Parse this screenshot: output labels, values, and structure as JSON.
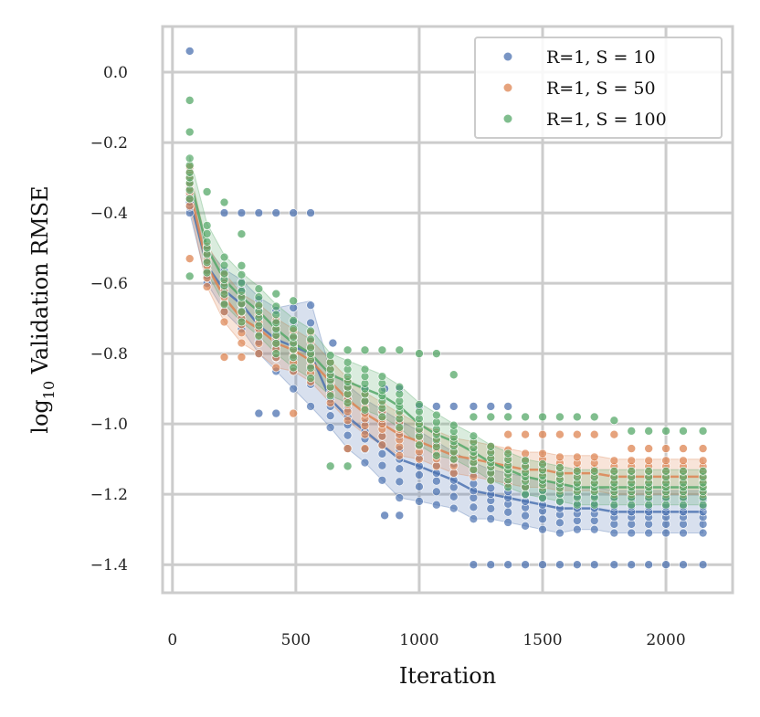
{
  "chart_data": {
    "type": "scatter",
    "title": "",
    "xlabel": "Iteration",
    "ylabel_base": "log",
    "ylabel_sub": "10",
    "ylabel_rest": " Validation RMSE",
    "xlim": [
      -40,
      2270
    ],
    "ylim": [
      -1.48,
      0.13
    ],
    "xticks": [
      0,
      500,
      1000,
      1500,
      2000
    ],
    "xtick_labels": [
      "0",
      "500",
      "1000",
      "1500",
      "2000"
    ],
    "yticks": [
      0.0,
      -0.2,
      -0.4,
      -0.6,
      -0.8,
      -1.0,
      -1.2,
      -1.4
    ],
    "ytick_labels": [
      "0.0",
      "−0.2",
      "−0.4",
      "−0.6",
      "−0.8",
      "−1.0",
      "−1.2",
      "−1.4"
    ],
    "grid": true,
    "legend_position": "top-right",
    "x": [
      70,
      140,
      210,
      280,
      350,
      420,
      490,
      560,
      640,
      710,
      780,
      850,
      920,
      1000,
      1070,
      1140,
      1220,
      1290,
      1360,
      1430,
      1500,
      1570,
      1640,
      1710,
      1790,
      1860,
      1930,
      2000,
      2070,
      2150
    ],
    "series": [
      {
        "name": "R=1, S = 10",
        "color": "#4c72b0",
        "mean": [
          -0.36,
          -0.55,
          -0.62,
          -0.66,
          -0.72,
          -0.76,
          -0.78,
          -0.8,
          -0.93,
          -0.98,
          -1.02,
          -1.06,
          -1.1,
          -1.12,
          -1.14,
          -1.16,
          -1.19,
          -1.2,
          -1.21,
          -1.22,
          -1.23,
          -1.24,
          -1.24,
          -1.24,
          -1.25,
          -1.25,
          -1.25,
          -1.25,
          -1.25,
          -1.25
        ],
        "band": [
          0.04,
          0.05,
          0.06,
          0.07,
          0.08,
          0.09,
          0.12,
          0.15,
          0.08,
          0.09,
          0.09,
          0.1,
          0.11,
          0.1,
          0.09,
          0.08,
          0.08,
          0.07,
          0.07,
          0.07,
          0.07,
          0.07,
          0.06,
          0.06,
          0.06,
          0.06,
          0.06,
          0.06,
          0.06,
          0.06
        ],
        "outliers": [
          [
            70,
            0.06
          ],
          [
            210,
            -0.4
          ],
          [
            280,
            -0.4
          ],
          [
            350,
            -0.4
          ],
          [
            420,
            -0.4
          ],
          [
            490,
            -0.4
          ],
          [
            560,
            -0.4
          ],
          [
            350,
            -0.97
          ],
          [
            420,
            -0.97
          ],
          [
            860,
            -1.26
          ],
          [
            920,
            -1.26
          ],
          [
            1220,
            -1.4
          ],
          [
            1290,
            -1.4
          ],
          [
            1360,
            -1.4
          ],
          [
            1430,
            -1.4
          ],
          [
            1500,
            -1.4
          ],
          [
            1570,
            -1.4
          ],
          [
            1640,
            -1.4
          ],
          [
            1710,
            -1.4
          ],
          [
            1790,
            -1.4
          ],
          [
            1860,
            -1.4
          ],
          [
            1930,
            -1.4
          ],
          [
            2000,
            -1.4
          ],
          [
            2070,
            -1.4
          ],
          [
            2150,
            -1.4
          ],
          [
            1000,
            -0.95
          ],
          [
            1070,
            -0.95
          ],
          [
            1140,
            -0.95
          ],
          [
            1220,
            -0.95
          ],
          [
            1290,
            -0.95
          ],
          [
            1360,
            -0.95
          ],
          [
            650,
            -0.77
          ],
          [
            780,
            -0.9
          ],
          [
            860,
            -0.9
          ],
          [
            920,
            -0.9
          ]
        ]
      },
      {
        "name": "R=1, S = 50",
        "color": "#dd8452",
        "mean": [
          -0.33,
          -0.55,
          -0.64,
          -0.7,
          -0.73,
          -0.77,
          -0.79,
          -0.82,
          -0.88,
          -0.93,
          -0.97,
          -1.0,
          -1.03,
          -1.05,
          -1.07,
          -1.09,
          -1.1,
          -1.11,
          -1.12,
          -1.13,
          -1.13,
          -1.14,
          -1.14,
          -1.14,
          -1.15,
          -1.15,
          -1.15,
          -1.15,
          -1.15,
          -1.15
        ],
        "band": [
          0.05,
          0.06,
          0.07,
          0.07,
          0.07,
          0.07,
          0.06,
          0.06,
          0.06,
          0.06,
          0.06,
          0.06,
          0.06,
          0.05,
          0.05,
          0.05,
          0.05,
          0.05,
          0.05,
          0.05,
          0.05,
          0.05,
          0.05,
          0.05,
          0.05,
          0.05,
          0.05,
          0.05,
          0.05,
          0.05
        ],
        "outliers": [
          [
            70,
            -0.53
          ],
          [
            70,
            -0.27
          ],
          [
            210,
            -0.81
          ],
          [
            280,
            -0.81
          ],
          [
            490,
            -0.97
          ],
          [
            710,
            -1.07
          ],
          [
            780,
            -1.07
          ],
          [
            1360,
            -1.03
          ],
          [
            1430,
            -1.03
          ],
          [
            1500,
            -1.03
          ],
          [
            1570,
            -1.03
          ],
          [
            1640,
            -1.03
          ],
          [
            1710,
            -1.03
          ],
          [
            1790,
            -1.03
          ],
          [
            1860,
            -1.07
          ],
          [
            1930,
            -1.07
          ],
          [
            2000,
            -1.07
          ],
          [
            2070,
            -1.07
          ],
          [
            2150,
            -1.07
          ],
          [
            560,
            -0.74
          ]
        ]
      },
      {
        "name": "R=1, S = 100",
        "color": "#55a868",
        "mean": [
          -0.3,
          -0.5,
          -0.59,
          -0.64,
          -0.68,
          -0.73,
          -0.77,
          -0.8,
          -0.86,
          -0.88,
          -0.9,
          -0.92,
          -0.95,
          -1.0,
          -1.03,
          -1.05,
          -1.08,
          -1.11,
          -1.13,
          -1.15,
          -1.16,
          -1.17,
          -1.18,
          -1.18,
          -1.18,
          -1.18,
          -1.18,
          -1.18,
          -1.18,
          -1.18
        ],
        "band": [
          0.06,
          0.07,
          0.07,
          0.07,
          0.07,
          0.07,
          0.07,
          0.07,
          0.06,
          0.06,
          0.06,
          0.06,
          0.06,
          0.06,
          0.06,
          0.05,
          0.05,
          0.05,
          0.05,
          0.05,
          0.05,
          0.05,
          0.05,
          0.05,
          0.05,
          0.05,
          0.05,
          0.05,
          0.05,
          0.05
        ],
        "outliers": [
          [
            70,
            -0.08
          ],
          [
            70,
            -0.17
          ],
          [
            70,
            -0.58
          ],
          [
            140,
            -0.34
          ],
          [
            210,
            -0.37
          ],
          [
            280,
            -0.46
          ],
          [
            280,
            -0.55
          ],
          [
            420,
            -0.63
          ],
          [
            490,
            -0.65
          ],
          [
            710,
            -0.79
          ],
          [
            780,
            -0.79
          ],
          [
            850,
            -0.79
          ],
          [
            920,
            -0.79
          ],
          [
            1000,
            -0.8
          ],
          [
            1070,
            -0.8
          ],
          [
            1140,
            -0.86
          ],
          [
            640,
            -1.12
          ],
          [
            710,
            -1.12
          ],
          [
            1220,
            -0.98
          ],
          [
            1290,
            -0.98
          ],
          [
            1360,
            -0.98
          ],
          [
            1430,
            -0.98
          ],
          [
            1500,
            -0.98
          ],
          [
            1570,
            -0.98
          ],
          [
            1640,
            -0.98
          ],
          [
            1710,
            -0.98
          ],
          [
            1790,
            -0.99
          ],
          [
            1860,
            -1.02
          ],
          [
            1930,
            -1.02
          ],
          [
            2000,
            -1.02
          ],
          [
            2070,
            -1.02
          ],
          [
            2150,
            -1.02
          ]
        ]
      }
    ]
  }
}
